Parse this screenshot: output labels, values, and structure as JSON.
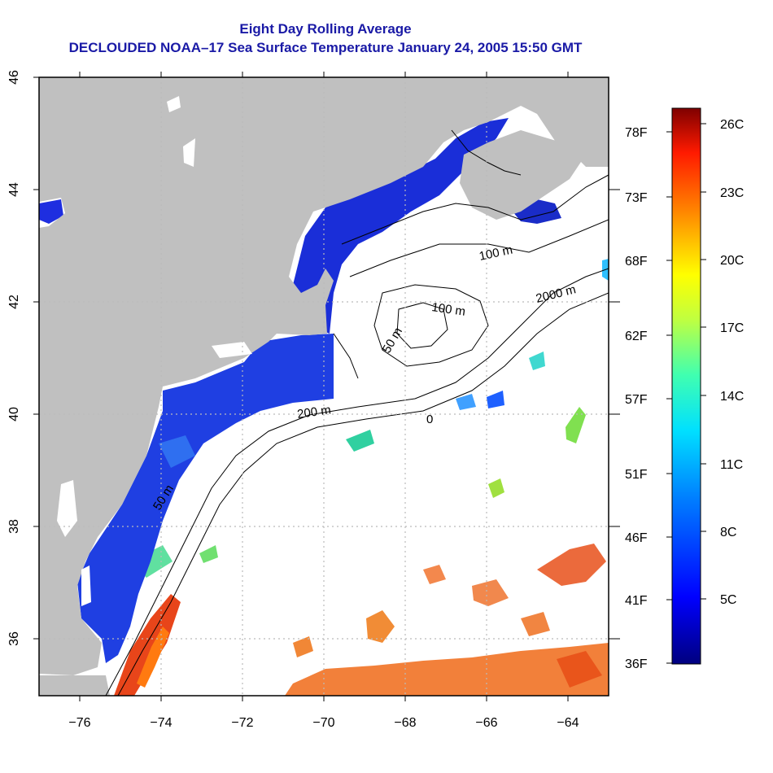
{
  "title": {
    "line1": "Eight Day Rolling Average",
    "line2": "DECLOUDED NOAA–17 Sea Surface Temperature January 24, 2005 15:50 GMT"
  },
  "map": {
    "lon_range": [
      -77,
      -63
    ],
    "lat_range": [
      35,
      46
    ],
    "x_ticks": [
      "−76",
      "−74",
      "−72",
      "−70",
      "−68",
      "−66",
      "−64"
    ],
    "y_ticks": [
      "36",
      "38",
      "40",
      "42",
      "44",
      "46"
    ],
    "contour_labels": [
      "100 m",
      "2000 m",
      "100 m",
      "50 m",
      "200 m",
      "50 m",
      "0"
    ],
    "colors": {
      "land": "#c0c0c0",
      "ocean_missing": "#ffffff",
      "cold": "#1b2fe0",
      "warm": "#e0521a",
      "contour": "#000000",
      "grid": "#bbbbbb"
    }
  },
  "colorbar": {
    "celsius_labels": [
      "26C",
      "23C",
      "20C",
      "17C",
      "14C",
      "11C",
      "8C",
      "5C"
    ],
    "fahrenheit_labels": [
      "78F",
      "73F",
      "68F",
      "62F",
      "57F",
      "51F",
      "46F",
      "41F",
      "36F"
    ],
    "range_c": [
      2,
      27
    ]
  }
}
